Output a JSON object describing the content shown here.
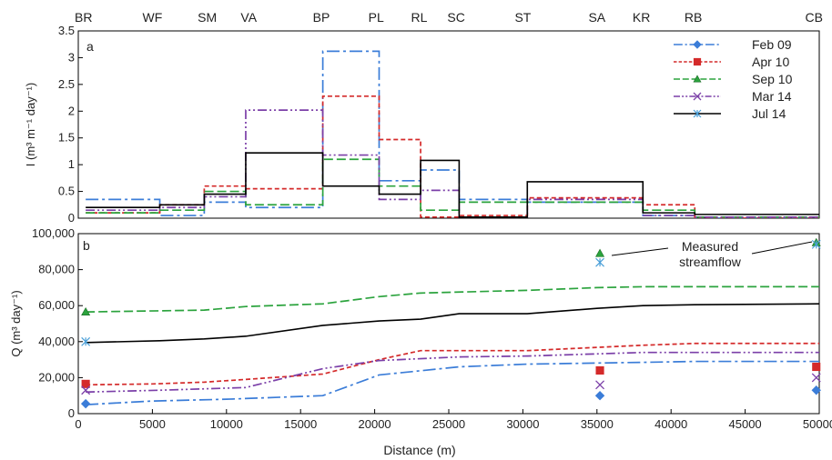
{
  "chart_data": [
    {
      "panel": "a",
      "type": "line",
      "ylabel": "I (m³ m⁻¹ day⁻¹)",
      "ylim": [
        0,
        3.5
      ],
      "yticks": [
        0,
        0.5,
        1,
        1.5,
        2,
        2.5,
        3,
        3.5
      ],
      "xlim": [
        0,
        50000
      ],
      "site_labels": [
        {
          "label": "BR",
          "x": 0
        },
        {
          "label": "WF",
          "x": 5000
        },
        {
          "label": "SM",
          "x": 8700
        },
        {
          "label": "VA",
          "x": 11500
        },
        {
          "label": "BP",
          "x": 16400
        },
        {
          "label": "PL",
          "x": 20100
        },
        {
          "label": "RL",
          "x": 23000
        },
        {
          "label": "SC",
          "x": 25500
        },
        {
          "label": "ST",
          "x": 30000
        },
        {
          "label": "SA",
          "x": 35000
        },
        {
          "label": "KR",
          "x": 38000
        },
        {
          "label": "RB",
          "x": 41500
        },
        {
          "label": "CB",
          "x": 49800
        }
      ],
      "reach_boundaries": [
        500,
        5500,
        8500,
        11300,
        16500,
        20300,
        23100,
        25700,
        30300,
        38100,
        41600,
        50000
      ],
      "series": [
        {
          "name": "Feb 09",
          "color": "#3b7dd8",
          "values": [
            0.35,
            0.05,
            0.3,
            0.2,
            3.12,
            0.7,
            0.9,
            0.35,
            0.3,
            0.05,
            0.0
          ]
        },
        {
          "name": "Apr 10",
          "color": "#d42a2a",
          "values": [
            0.1,
            0.25,
            0.6,
            0.55,
            2.28,
            1.47,
            0.02,
            0.05,
            0.38,
            0.25,
            0.0
          ]
        },
        {
          "name": "Sep 10",
          "color": "#2ba33d",
          "values": [
            0.1,
            0.15,
            0.5,
            0.25,
            1.1,
            0.6,
            0.15,
            0.3,
            0.3,
            0.15,
            0.02
          ]
        },
        {
          "name": "Mar 14",
          "color": "#7b3fa8",
          "values": [
            0.15,
            0.2,
            0.4,
            2.02,
            1.18,
            0.35,
            0.52,
            0.02,
            0.35,
            0.05,
            0.02
          ]
        },
        {
          "name": "Jul 14",
          "color": "#000000",
          "values": [
            0.2,
            0.25,
            0.45,
            1.22,
            0.6,
            0.45,
            1.08,
            0.02,
            0.68,
            0.1,
            0.07
          ]
        }
      ]
    },
    {
      "panel": "b",
      "type": "line",
      "xlabel": "Distance (m)",
      "ylabel": "Q (m³ day⁻¹)",
      "xlim": [
        0,
        50000
      ],
      "ylim": [
        0,
        100000
      ],
      "xticks": [
        0,
        5000,
        10000,
        15000,
        20000,
        25000,
        30000,
        35000,
        40000,
        45000,
        50000
      ],
      "yticks": [
        0,
        20000,
        40000,
        60000,
        80000,
        100000
      ],
      "annotation": "Measured streamflow",
      "series": [
        {
          "name": "Feb 09",
          "color": "#3b7dd8",
          "x": [
            500,
            5000,
            10000,
            16500,
            20300,
            25700,
            30300,
            38100,
            41600,
            50000
          ],
          "y": [
            5000,
            7000,
            8000,
            10000,
            21500,
            26000,
            27500,
            28500,
            29000,
            29000
          ],
          "measured_x": [
            500,
            35200,
            49800
          ],
          "measured_y": [
            5500,
            10000,
            13000
          ]
        },
        {
          "name": "Apr 10",
          "color": "#d42a2a",
          "x": [
            500,
            5000,
            8500,
            11300,
            16500,
            20300,
            23100,
            30300,
            38100,
            41600,
            50000
          ],
          "y": [
            16000,
            16500,
            17500,
            19000,
            22000,
            30000,
            35000,
            35000,
            38000,
            39000,
            39000
          ],
          "measured_x": [
            500,
            35200,
            49800
          ],
          "measured_y": [
            16500,
            24000,
            26000
          ]
        },
        {
          "name": "Sep 10",
          "color": "#2ba33d",
          "x": [
            500,
            8500,
            11300,
            16500,
            20300,
            23100,
            30300,
            35000,
            38100,
            50000
          ],
          "y": [
            56500,
            57500,
            59500,
            61000,
            65000,
            67000,
            68500,
            70000,
            70500,
            70500
          ],
          "measured_x": [
            500,
            35200,
            49800
          ],
          "measured_y": [
            56500,
            89000,
            95000
          ]
        },
        {
          "name": "Mar 14",
          "color": "#7b3fa8",
          "x": [
            500,
            5500,
            11300,
            16500,
            20300,
            25700,
            30300,
            38100,
            50000
          ],
          "y": [
            12000,
            13000,
            14500,
            25000,
            29500,
            31500,
            32000,
            34000,
            34000
          ],
          "measured_x": [
            500,
            35200,
            49800
          ],
          "measured_y": [
            13000,
            16000,
            20000
          ]
        },
        {
          "name": "Jul 14",
          "color": "#000000",
          "x": [
            500,
            5500,
            8500,
            11300,
            16500,
            20300,
            23100,
            25700,
            30300,
            35000,
            38100,
            41600,
            50000
          ],
          "y": [
            39500,
            40500,
            41500,
            43000,
            49000,
            51500,
            52500,
            55500,
            55500,
            58500,
            60000,
            60500,
            61000
          ],
          "measured_x": [
            500,
            35200,
            49800
          ],
          "measured_y": [
            40000,
            84000,
            94000
          ]
        }
      ]
    }
  ]
}
